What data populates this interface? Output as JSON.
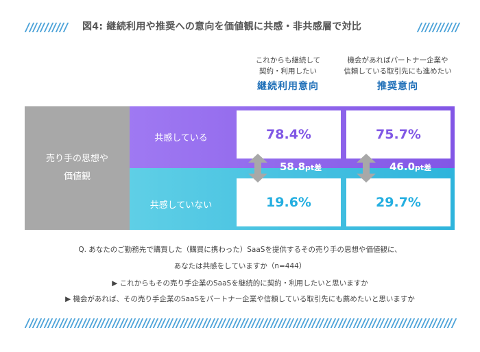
{
  "title": "図4: 継続利用や推奨への意向を価値観に共感・非共感層で対比",
  "columns": [
    {
      "sub1": "これからも継続して",
      "sub2": "契約・利用したい",
      "main": "継続利用意向"
    },
    {
      "sub1": "機会があればパートナー企業や",
      "sub2": "信頼している取引先にも進めたい",
      "main": "推奨意向"
    }
  ],
  "row_group_label_1": "売り手の思想や",
  "row_group_label_2": "価値観",
  "rows": [
    {
      "label": "共感している"
    },
    {
      "label": "共感していない"
    }
  ],
  "colors": {
    "sympathize": "#8057e5",
    "not_sympathize": "#23aee0",
    "row_group": "#a8a8a8",
    "accent_blue": "#1f6fb8"
  },
  "chart_data": {
    "type": "table",
    "categories": [
      "継続利用意向",
      "推奨意向"
    ],
    "series": [
      {
        "name": "共感している",
        "values": [
          78.4,
          75.7
        ],
        "labels": [
          "78.4%",
          "75.7%"
        ]
      },
      {
        "name": "共感していない",
        "values": [
          19.6,
          29.7
        ],
        "labels": [
          "19.6%",
          "29.7%"
        ]
      }
    ],
    "differences": [
      {
        "value": "58.8",
        "unit": "pt差"
      },
      {
        "value": "46.0",
        "unit": "pt差"
      }
    ]
  },
  "notes": [
    "Q. あなたのご勤務先で購買した（購買に携わった）SaaSを提供するその売り手の思想や価値観に、",
    "あなたは共感をしていますか（n=444）",
    "▶ これからもその売り手企業のSaaSを継続的に契約・利用したいと思いますか",
    "▶ 機会があれば、その売り手企業のSaaSをパートナー企業や信頼している取引先にも薦めたいと思いますか"
  ]
}
